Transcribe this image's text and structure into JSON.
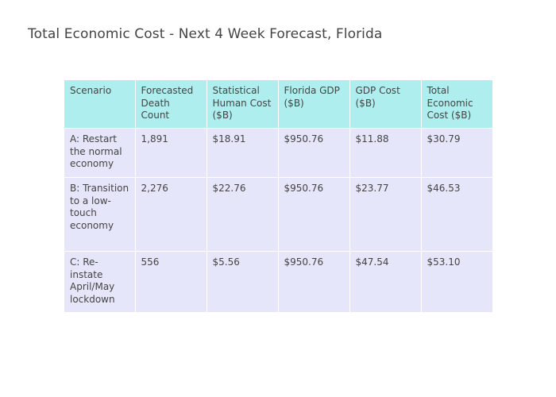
{
  "title": "Total Economic Cost - Next 4 Week Forecast, Florida",
  "chart_data": {
    "type": "table",
    "title": "Total Economic Cost - Next 4 Week Forecast, Florida",
    "columns": [
      "Scenario",
      "Forecasted Death Count",
      "Statistical Human Cost ($B)",
      "Florida GDP ($B)",
      "GDP Cost ($B)",
      "Total Economic Cost ($B)"
    ],
    "rows": [
      [
        "A: Restart the normal economy",
        "1,891",
        "$18.91",
        "$950.76",
        "$11.88",
        "$30.79"
      ],
      [
        "B: Transition to a low-touch economy",
        "2,276",
        "$22.76",
        "$950.76",
        "$23.77",
        "$46.53"
      ],
      [
        "C: Re-instate April/May lockdown",
        "556",
        "$5.56",
        "$950.76",
        "$47.54",
        "$53.10"
      ]
    ],
    "colors": {
      "header_fill": "#aeeeee",
      "cell_fill": "#e6e6fa",
      "text": "#444444"
    }
  }
}
